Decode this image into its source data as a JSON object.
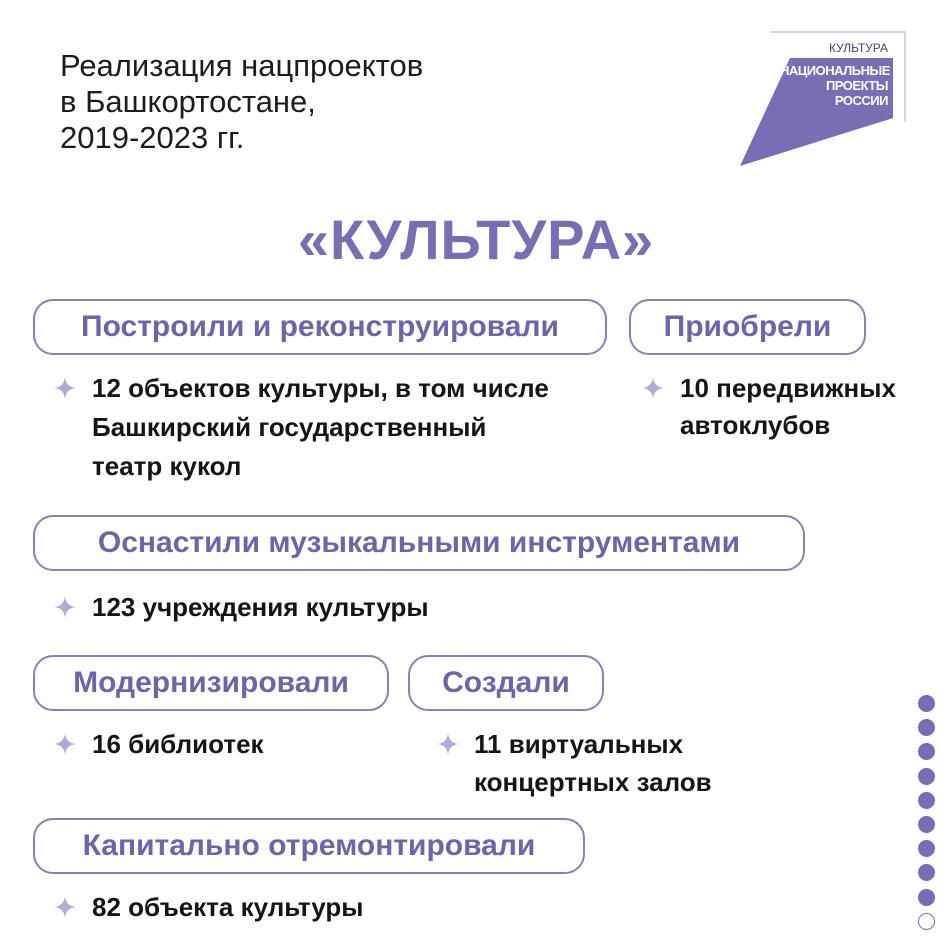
{
  "header": {
    "title_lines": [
      "Реализация нацпроектов",
      "в Башкортостане,",
      "2019-2023 гг."
    ]
  },
  "logo": {
    "top": "КУЛЬТУРА",
    "lines": [
      "НАЦИОНАЛЬНЫЕ",
      "ПРОЕКТЫ",
      "РОССИИ"
    ]
  },
  "main_title": "«КУЛЬТУРА»",
  "sections": [
    {
      "label": "Построили и реконструировали",
      "lines": [
        "12 объектов культуры, в том числе",
        "Башкирский государственный",
        "театр кукол"
      ]
    },
    {
      "label": "Приобрели",
      "lines": [
        "10 передвижных",
        "автоклубов"
      ]
    },
    {
      "label": "Оснастили музыкальными инструментами",
      "lines": [
        "123 учреждения культуры"
      ]
    },
    {
      "label": "Модернизировали",
      "lines": [
        "16 библиотек"
      ]
    },
    {
      "label": "Создали",
      "lines": [
        "11 виртуальных",
        "концертных залов"
      ]
    },
    {
      "label": "Капитально отремонтировали",
      "lines": [
        "82 объекта культуры"
      ]
    }
  ]
}
